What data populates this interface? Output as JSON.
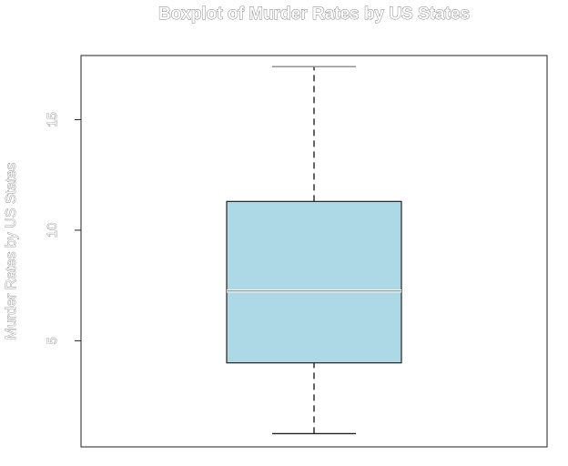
{
  "chart_data": {
    "type": "box",
    "title": "Boxplot of Murder Rates by US States",
    "ylabel": "Murder Rates by US States",
    "xlabel": "",
    "ylim": [
      0.2,
      17.9
    ],
    "yticks": [
      5,
      10,
      15
    ],
    "ytick_labels": [
      "5",
      "10",
      "15"
    ],
    "series": [
      {
        "min": 0.8,
        "q1": 4.0,
        "median": 7.25,
        "q3": 11.3,
        "max": 17.4
      }
    ],
    "box_color": "#add8e6",
    "line_color": "#222222",
    "grid": false
  }
}
